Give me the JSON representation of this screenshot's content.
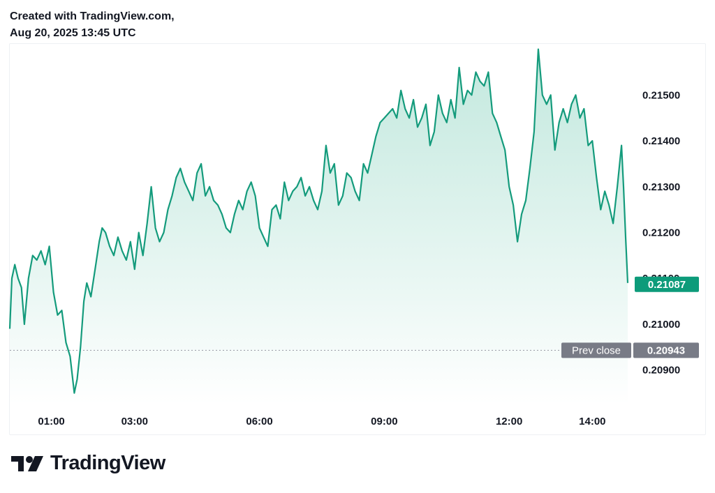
{
  "header": {
    "line1": "Created with TradingView.com,",
    "line2": "Aug 20, 2025 13:45 UTC"
  },
  "brand": {
    "name": "TradingView",
    "logo_icon": "tradingview-logo-icon"
  },
  "colors": {
    "line": "#149b7c",
    "fill_top": "#bfe7dc",
    "fill_bottom": "#ffffff",
    "current_badge": "#0d9b7a",
    "prev_badge": "#787b86",
    "axis_text": "#131722"
  },
  "chart_data": {
    "type": "area",
    "x_tick_labels": [
      "01:00",
      "03:00",
      "06:00",
      "09:00",
      "12:00",
      "14:00"
    ],
    "y_tick_labels": [
      "0.21500",
      "0.21400",
      "0.21300",
      "0.21200",
      "0.21100",
      "0.21000",
      "0.20900"
    ],
    "y_ticks": [
      0.215,
      0.214,
      0.213,
      0.212,
      0.211,
      0.21,
      0.209
    ],
    "ylim": [
      0.20825,
      0.2161
    ],
    "x_hours_range": [
      0.0,
      14.85
    ],
    "current_price": {
      "value": 0.21087,
      "label": "0.21087"
    },
    "prev_close": {
      "value": 0.20943,
      "label": "0.20943",
      "tag": "Prev close"
    },
    "series": [
      {
        "x": [
          0.0,
          0.05,
          0.12,
          0.2,
          0.28,
          0.35,
          0.45,
          0.55,
          0.65,
          0.75,
          0.85,
          0.95,
          1.05,
          1.15,
          1.25,
          1.35,
          1.45,
          1.55,
          1.62,
          1.7,
          1.78,
          1.85,
          1.95,
          2.05,
          2.15,
          2.22,
          2.3,
          2.4,
          2.5,
          2.6,
          2.7,
          2.8,
          2.9,
          3.0,
          3.1,
          3.2,
          3.3,
          3.4,
          3.5,
          3.6,
          3.7,
          3.8,
          3.9,
          4.0,
          4.1,
          4.2,
          4.3,
          4.4,
          4.5,
          4.6,
          4.7,
          4.8,
          4.9,
          5.0,
          5.1,
          5.2,
          5.3,
          5.4,
          5.5,
          5.6,
          5.7,
          5.8,
          5.9,
          6.0,
          6.1,
          6.2,
          6.3,
          6.4,
          6.5,
          6.6,
          6.7,
          6.8,
          6.9,
          7.0,
          7.1,
          7.2,
          7.3,
          7.4,
          7.5,
          7.6,
          7.7,
          7.8,
          7.9,
          8.0,
          8.1,
          8.2,
          8.3,
          8.4,
          8.5,
          8.6,
          8.7,
          8.8,
          8.9,
          9.0,
          9.1,
          9.2,
          9.3,
          9.4,
          9.5,
          9.6,
          9.7,
          9.8,
          9.9,
          10.0,
          10.1,
          10.2,
          10.3,
          10.4,
          10.5,
          10.6,
          10.7,
          10.8,
          10.9,
          11.0,
          11.1,
          11.2,
          11.3,
          11.4,
          11.5,
          11.6,
          11.7,
          11.8,
          11.9,
          12.0,
          12.1,
          12.2,
          12.3,
          12.4,
          12.5,
          12.6,
          12.7,
          12.8,
          12.9,
          13.0,
          13.1,
          13.2,
          13.3,
          13.4,
          13.5,
          13.6,
          13.7,
          13.8,
          13.9,
          14.0,
          14.1,
          14.2,
          14.3,
          14.4,
          14.5,
          14.6,
          14.7,
          14.75,
          14.8,
          14.85
        ],
        "values": [
          0.2099,
          0.211,
          0.2113,
          0.211,
          0.2108,
          0.21,
          0.211,
          0.2115,
          0.2114,
          0.2116,
          0.2113,
          0.2117,
          0.2107,
          0.2102,
          0.2103,
          0.2096,
          0.2093,
          0.2085,
          0.2088,
          0.2095,
          0.2105,
          0.2109,
          0.2106,
          0.2112,
          0.2118,
          0.2121,
          0.212,
          0.2117,
          0.2115,
          0.2119,
          0.2116,
          0.2114,
          0.2118,
          0.2112,
          0.212,
          0.2115,
          0.2122,
          0.213,
          0.2121,
          0.2118,
          0.212,
          0.2125,
          0.2128,
          0.2132,
          0.2134,
          0.2131,
          0.2129,
          0.2127,
          0.2133,
          0.2135,
          0.2128,
          0.213,
          0.2127,
          0.2126,
          0.2124,
          0.2121,
          0.212,
          0.2124,
          0.2127,
          0.2125,
          0.2129,
          0.2131,
          0.2128,
          0.2121,
          0.2119,
          0.2117,
          0.2125,
          0.2126,
          0.2123,
          0.2131,
          0.2127,
          0.2129,
          0.213,
          0.2132,
          0.2128,
          0.213,
          0.2127,
          0.2125,
          0.2129,
          0.2139,
          0.2133,
          0.2135,
          0.2126,
          0.2128,
          0.2133,
          0.2132,
          0.2129,
          0.2127,
          0.2135,
          0.2133,
          0.2137,
          0.2141,
          0.2144,
          0.2145,
          0.2146,
          0.2147,
          0.2145,
          0.2151,
          0.2147,
          0.2145,
          0.2149,
          0.2143,
          0.2145,
          0.2148,
          0.2139,
          0.2142,
          0.215,
          0.2146,
          0.2144,
          0.2149,
          0.2145,
          0.2156,
          0.2148,
          0.2151,
          0.215,
          0.2155,
          0.2153,
          0.2152,
          0.2155,
          0.2146,
          0.2144,
          0.2141,
          0.2138,
          0.213,
          0.2126,
          0.2118,
          0.2124,
          0.2127,
          0.2134,
          0.2142,
          0.216,
          0.215,
          0.2148,
          0.215,
          0.2138,
          0.2144,
          0.2147,
          0.2144,
          0.2148,
          0.215,
          0.2145,
          0.2147,
          0.2139,
          0.214,
          0.2132,
          0.2125,
          0.2129,
          0.2126,
          0.2122,
          0.213,
          0.2139,
          0.213,
          0.2119,
          0.2109
        ]
      }
    ]
  }
}
